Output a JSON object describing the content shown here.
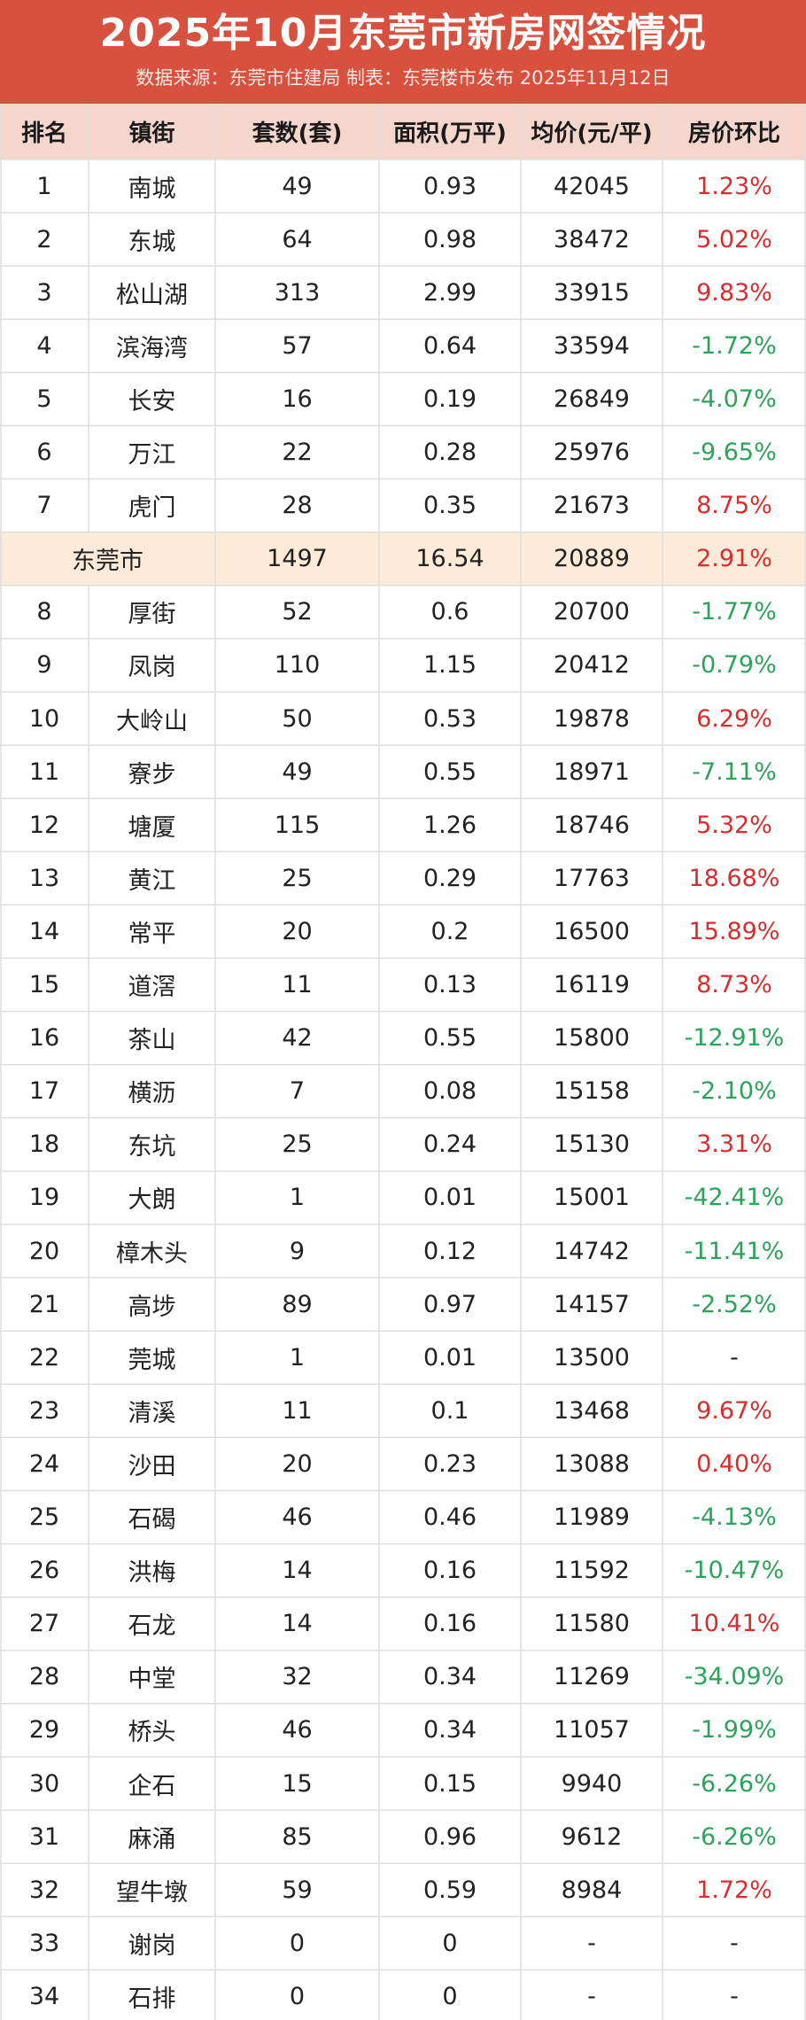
{
  "title": "2025年10月东莞市新房网签情况",
  "subtitle": "数据来源：东莞市住建局  制表：东莞楼市发布  2025年11月12日",
  "colors": {
    "banner": "#d8513f",
    "header_bg": "#f4d6cc",
    "city_row_bg": "#fcebd9",
    "up": "#d72d2d",
    "down": "#2ba35a",
    "grid_line": "#dddddd"
  },
  "headers": [
    "排名",
    "镇街",
    "套数(套)",
    "面积(万平)",
    "均价(元/平)",
    "房价环比"
  ],
  "chart_data": {
    "type": "table",
    "title": "2025年10月东莞市新房网签情况",
    "columns": [
      "排名",
      "镇街",
      "套数(套)",
      "面积(万平)",
      "均价(元/平)",
      "房价环比"
    ],
    "rows": [
      {
        "rank": "1",
        "name": "南城",
        "units": "49",
        "area": "0.93",
        "price": "42045",
        "mom": "1.23%"
      },
      {
        "rank": "2",
        "name": "东城",
        "units": "64",
        "area": "0.98",
        "price": "38472",
        "mom": "5.02%"
      },
      {
        "rank": "3",
        "name": "松山湖",
        "units": "313",
        "area": "2.99",
        "price": "33915",
        "mom": "9.83%"
      },
      {
        "rank": "4",
        "name": "滨海湾",
        "units": "57",
        "area": "0.64",
        "price": "33594",
        "mom": "-1.72%"
      },
      {
        "rank": "5",
        "name": "长安",
        "units": "16",
        "area": "0.19",
        "price": "26849",
        "mom": "-4.07%"
      },
      {
        "rank": "6",
        "name": "万江",
        "units": "22",
        "area": "0.28",
        "price": "25976",
        "mom": "-9.65%"
      },
      {
        "rank": "7",
        "name": "虎门",
        "units": "28",
        "area": "0.35",
        "price": "21673",
        "mom": "8.75%"
      },
      {
        "rank": "",
        "name": "东莞市",
        "units": "1497",
        "area": "16.54",
        "price": "20889",
        "mom": "2.91%",
        "city": true
      },
      {
        "rank": "8",
        "name": "厚街",
        "units": "52",
        "area": "0.6",
        "price": "20700",
        "mom": "-1.77%"
      },
      {
        "rank": "9",
        "name": "凤岗",
        "units": "110",
        "area": "1.15",
        "price": "20412",
        "mom": "-0.79%"
      },
      {
        "rank": "10",
        "name": "大岭山",
        "units": "50",
        "area": "0.53",
        "price": "19878",
        "mom": "6.29%"
      },
      {
        "rank": "11",
        "name": "寮步",
        "units": "49",
        "area": "0.55",
        "price": "18971",
        "mom": "-7.11%"
      },
      {
        "rank": "12",
        "name": "塘厦",
        "units": "115",
        "area": "1.26",
        "price": "18746",
        "mom": "5.32%"
      },
      {
        "rank": "13",
        "name": "黄江",
        "units": "25",
        "area": "0.29",
        "price": "17763",
        "mom": "18.68%"
      },
      {
        "rank": "14",
        "name": "常平",
        "units": "20",
        "area": "0.2",
        "price": "16500",
        "mom": "15.89%"
      },
      {
        "rank": "15",
        "name": "道滘",
        "units": "11",
        "area": "0.13",
        "price": "16119",
        "mom": "8.73%"
      },
      {
        "rank": "16",
        "name": "茶山",
        "units": "42",
        "area": "0.55",
        "price": "15800",
        "mom": "-12.91%"
      },
      {
        "rank": "17",
        "name": "横沥",
        "units": "7",
        "area": "0.08",
        "price": "15158",
        "mom": "-2.10%"
      },
      {
        "rank": "18",
        "name": "东坑",
        "units": "25",
        "area": "0.24",
        "price": "15130",
        "mom": "3.31%"
      },
      {
        "rank": "19",
        "name": "大朗",
        "units": "1",
        "area": "0.01",
        "price": "15001",
        "mom": "-42.41%"
      },
      {
        "rank": "20",
        "name": "樟木头",
        "units": "9",
        "area": "0.12",
        "price": "14742",
        "mom": "-11.41%"
      },
      {
        "rank": "21",
        "name": "高埗",
        "units": "89",
        "area": "0.97",
        "price": "14157",
        "mom": "-2.52%"
      },
      {
        "rank": "22",
        "name": "莞城",
        "units": "1",
        "area": "0.01",
        "price": "13500",
        "mom": "-"
      },
      {
        "rank": "23",
        "name": "清溪",
        "units": "11",
        "area": "0.1",
        "price": "13468",
        "mom": "9.67%"
      },
      {
        "rank": "24",
        "name": "沙田",
        "units": "20",
        "area": "0.23",
        "price": "13088",
        "mom": "0.40%"
      },
      {
        "rank": "25",
        "name": "石碣",
        "units": "46",
        "area": "0.46",
        "price": "11989",
        "mom": "-4.13%"
      },
      {
        "rank": "26",
        "name": "洪梅",
        "units": "14",
        "area": "0.16",
        "price": "11592",
        "mom": "-10.47%"
      },
      {
        "rank": "27",
        "name": "石龙",
        "units": "14",
        "area": "0.16",
        "price": "11580",
        "mom": "10.41%"
      },
      {
        "rank": "28",
        "name": "中堂",
        "units": "32",
        "area": "0.34",
        "price": "11269",
        "mom": "-34.09%"
      },
      {
        "rank": "29",
        "name": "桥头",
        "units": "46",
        "area": "0.34",
        "price": "11057",
        "mom": "-1.99%"
      },
      {
        "rank": "30",
        "name": "企石",
        "units": "15",
        "area": "0.15",
        "price": "9940",
        "mom": "-6.26%"
      },
      {
        "rank": "31",
        "name": "麻涌",
        "units": "85",
        "area": "0.96",
        "price": "9612",
        "mom": "-6.26%"
      },
      {
        "rank": "32",
        "name": "望牛墩",
        "units": "59",
        "area": "0.59",
        "price": "8984",
        "mom": "1.72%"
      },
      {
        "rank": "33",
        "name": "谢岗",
        "units": "0",
        "area": "0",
        "price": "-",
        "mom": "-"
      },
      {
        "rank": "34",
        "name": "石排",
        "units": "0",
        "area": "0",
        "price": "-",
        "mom": "-"
      }
    ]
  }
}
